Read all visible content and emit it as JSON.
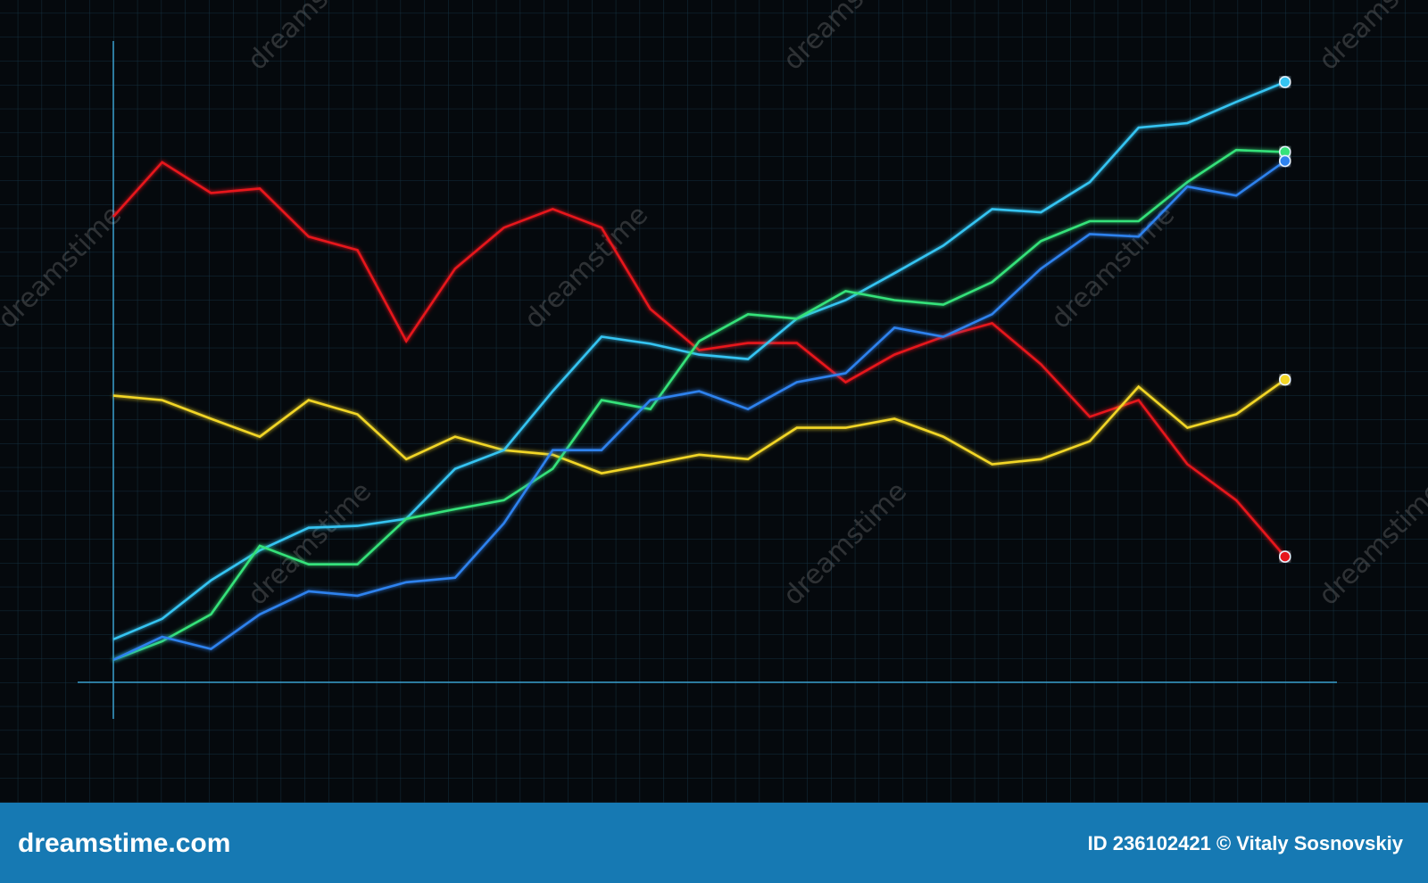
{
  "chart_data": {
    "type": "line",
    "categories": [
      null,
      null,
      null,
      null,
      null,
      null,
      null,
      null,
      null,
      null,
      null,
      null,
      null,
      null,
      null,
      null,
      null,
      null,
      null,
      null,
      null,
      null,
      null,
      null,
      null
    ],
    "series": [
      {
        "color": "#e8141a",
        "values": [
          72.6,
          81.1,
          76.3,
          77.0,
          69.5,
          67.4,
          53.2,
          64.5,
          70.9,
          73.8,
          70.9,
          58.2,
          51.8,
          52.9,
          52.9,
          46.8,
          51.1,
          53.9,
          56.0,
          49.6,
          41.4,
          44.0,
          34.0,
          28.4,
          19.6
        ]
      },
      {
        "color": "#f2d627",
        "values": [
          44.7,
          44.0,
          41.1,
          38.3,
          44.0,
          41.8,
          34.8,
          38.3,
          36.2,
          35.5,
          32.6,
          34.0,
          35.5,
          34.8,
          39.7,
          39.7,
          41.1,
          38.3,
          34.0,
          34.8,
          37.6,
          46.1,
          39.7,
          41.8,
          47.2
        ]
      },
      {
        "color": "#35c4f2",
        "values": [
          6.7,
          9.9,
          15.9,
          20.6,
          24.1,
          24.4,
          25.5,
          33.3,
          36.2,
          45.4,
          53.9,
          52.8,
          51.1,
          50.4,
          56.7,
          59.6,
          63.8,
          68.1,
          73.8,
          73.3,
          78.0,
          86.5,
          87.2,
          90.5,
          93.6
        ]
      },
      {
        "color": "#35e27a",
        "values": [
          3.5,
          6.4,
          10.6,
          21.3,
          18.4,
          18.4,
          25.5,
          27.0,
          28.4,
          33.3,
          44.0,
          42.6,
          53.2,
          57.4,
          56.7,
          61.0,
          59.6,
          58.9,
          62.4,
          68.8,
          71.9,
          71.9,
          78.0,
          83.0,
          82.7
        ]
      },
      {
        "color": "#2d82ee",
        "values": [
          3.5,
          7.1,
          5.2,
          10.6,
          14.2,
          13.5,
          15.6,
          16.3,
          24.8,
          36.2,
          36.2,
          44.0,
          45.4,
          42.6,
          46.8,
          48.2,
          55.3,
          53.9,
          57.4,
          64.5,
          69.9,
          69.5,
          77.3,
          75.9,
          81.3
        ]
      }
    ],
    "ylim": [
      0,
      100
    ],
    "grid": true
  },
  "watermark": "dreamstime",
  "footer": {
    "brand": "dreamstime.com",
    "credit": "ID 236102421 © Vitaly Sosnovskiy"
  }
}
